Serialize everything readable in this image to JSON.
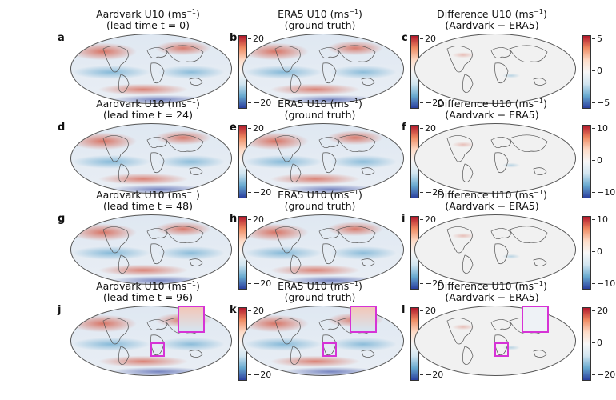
{
  "panels": [
    {
      "letter": "a",
      "title1": "Aardvark U10 (ms",
      "title2": "(lead time t = 0)",
      "cbar": [
        "20",
        "0",
        "−20"
      ],
      "style": "pred"
    },
    {
      "letter": "b",
      "title1": "ERA5 U10 (ms",
      "title2": "(ground truth)",
      "cbar": [
        "20",
        "0",
        "−20"
      ],
      "style": "pred"
    },
    {
      "letter": "c",
      "title1": "Difference U10 (ms",
      "title2": "(Aardvark − ERA5)",
      "cbar": [
        "5",
        "0",
        "−5"
      ],
      "style": "diff"
    },
    {
      "letter": "d",
      "title1": "Aardvark U10 (ms",
      "title2": "(lead time t = 24)",
      "cbar": [
        "20",
        "0",
        "−20"
      ],
      "style": "pred"
    },
    {
      "letter": "e",
      "title1": "ERA5 U10 (ms",
      "title2": "(ground truth)",
      "cbar": [
        "20",
        "0",
        "−20"
      ],
      "style": "pred"
    },
    {
      "letter": "f",
      "title1": "Difference U10 (ms",
      "title2": "(Aardvark − ERA5)",
      "cbar": [
        "10",
        "0",
        "−10"
      ],
      "style": "diff"
    },
    {
      "letter": "g",
      "title1": "Aardvark U10 (ms",
      "title2": "(lead time t = 48)",
      "cbar": [
        "20",
        "0",
        "−20"
      ],
      "style": "pred"
    },
    {
      "letter": "h",
      "title1": "ERA5 U10 (ms",
      "title2": "(ground truth)",
      "cbar": [
        "20",
        "0",
        "−20"
      ],
      "style": "pred"
    },
    {
      "letter": "i",
      "title1": "Difference U10 (ms",
      "title2": "(Aardvark − ERA5)",
      "cbar": [
        "10",
        "0",
        "−10"
      ],
      "style": "diff"
    },
    {
      "letter": "j",
      "title1": "Aardvark U10 (ms",
      "title2": "(lead time t = 96)",
      "cbar": [
        "20",
        "0",
        "−20"
      ],
      "style": "pred"
    },
    {
      "letter": "k",
      "title1": "ERA5 U10 (ms",
      "title2": "(ground truth)",
      "cbar": [
        "20",
        "0",
        "−20"
      ],
      "style": "pred"
    },
    {
      "letter": "l",
      "title1": "Difference U10 (ms",
      "title2": "(Aardvark − ERA5)",
      "cbar": [
        "20",
        "0",
        "−20"
      ],
      "style": "diff"
    }
  ],
  "unit_sup": "−1",
  "colors": {
    "positive": "#c0392b",
    "negative": "#2b4cb3",
    "neutral": "#f2f2f2",
    "highlight": "#d633d6"
  }
}
